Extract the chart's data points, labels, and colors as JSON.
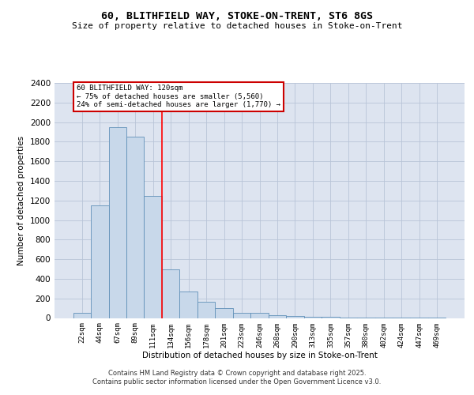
{
  "title_line1": "60, BLITHFIELD WAY, STOKE-ON-TRENT, ST6 8GS",
  "title_line2": "Size of property relative to detached houses in Stoke-on-Trent",
  "xlabel": "Distribution of detached houses by size in Stoke-on-Trent",
  "ylabel": "Number of detached properties",
  "categories": [
    "22sqm",
    "44sqm",
    "67sqm",
    "89sqm",
    "111sqm",
    "134sqm",
    "156sqm",
    "178sqm",
    "201sqm",
    "223sqm",
    "246sqm",
    "268sqm",
    "290sqm",
    "313sqm",
    "335sqm",
    "357sqm",
    "380sqm",
    "402sqm",
    "424sqm",
    "447sqm",
    "469sqm"
  ],
  "values": [
    50,
    1150,
    1950,
    1850,
    1250,
    500,
    270,
    165,
    100,
    50,
    50,
    25,
    20,
    15,
    10,
    5,
    3,
    2,
    1,
    1,
    1
  ],
  "bar_color": "#c8d8ea",
  "bar_edge_color": "#6090b8",
  "red_line_x": 4.5,
  "annotation_text": "60 BLITHFIELD WAY: 120sqm\n← 75% of detached houses are smaller (5,560)\n24% of semi-detached houses are larger (1,770) →",
  "annotation_box_color": "#ffffff",
  "annotation_box_edge": "#cc0000",
  "ylim": [
    0,
    2400
  ],
  "yticks": [
    0,
    200,
    400,
    600,
    800,
    1000,
    1200,
    1400,
    1600,
    1800,
    2000,
    2200,
    2400
  ],
  "grid_color": "#b8c4d8",
  "background_color": "#dde4f0",
  "footer_line1": "Contains HM Land Registry data © Crown copyright and database right 2025.",
  "footer_line2": "Contains public sector information licensed under the Open Government Licence v3.0."
}
